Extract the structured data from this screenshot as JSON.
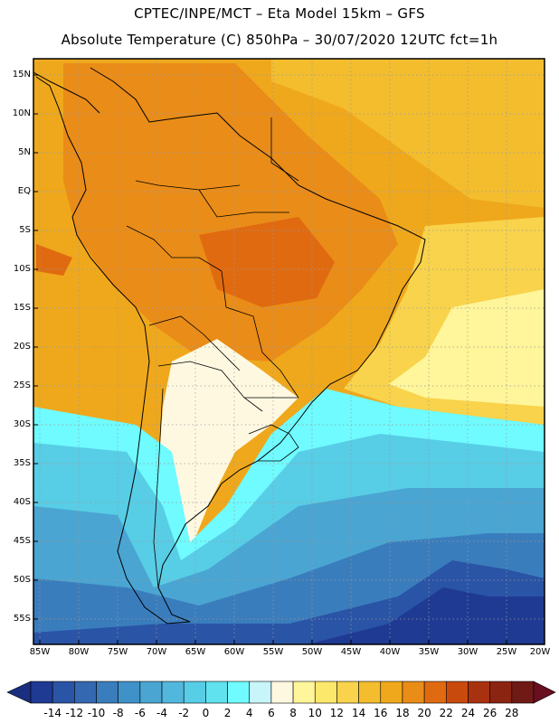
{
  "titles": {
    "line1": "CPTEC/INPE/MCT –  Eta Model 15km – GFS",
    "line2": "Absolute Temperature (C) 850hPa – 30/07/2020 12UTC fct=1h"
  },
  "axes": {
    "lat_labels": [
      "15N",
      "10N",
      "5N",
      "EQ",
      "5S",
      "10S",
      "15S",
      "20S",
      "25S",
      "30S",
      "35S",
      "40S",
      "45S",
      "50S",
      "55S"
    ],
    "lon_labels": [
      "85W",
      "80W",
      "75W",
      "70W",
      "65W",
      "60W",
      "55W",
      "50W",
      "45W",
      "40W",
      "35W",
      "30W",
      "25W",
      "20W"
    ]
  },
  "colorbar": {
    "labels": [
      "-14",
      "-12",
      "-10",
      "-8",
      "-6",
      "-4",
      "-2",
      "0",
      "2",
      "4",
      "6",
      "8",
      "10",
      "12",
      "14",
      "16",
      "18",
      "20",
      "22",
      "24",
      "26",
      "28"
    ],
    "colors": [
      "#1f3a93",
      "#2a54a6",
      "#3468b0",
      "#3a7dbd",
      "#3f92c8",
      "#4aa5d2",
      "#52b7dc",
      "#58cde6",
      "#61e2ef",
      "#6ffbff",
      "#c8f5fa",
      "#fff8e1",
      "#fff59a",
      "#fce86a",
      "#f8d34b",
      "#f3bd2e",
      "#efa81c",
      "#ea8c18",
      "#e06a10",
      "#c94a0d",
      "#a83210",
      "#8c2412",
      "#701a16"
    ],
    "low_color": "#1a2f80",
    "high_color": "#6a0f20"
  },
  "map_colors": {
    "ocean_equatorial": "#efa81c",
    "ocean_north": "#f3bd2e",
    "land_warm": "#ea8c18",
    "land_hot": "#e06a10",
    "subtropical": "#f8d34b",
    "mid_lat_light": "#fff59a",
    "cool": "#fff8e1",
    "cold_1": "#6ffbff",
    "cold_2": "#58cde6",
    "cold_3": "#4aa5d2",
    "cold_4": "#3a7dbd",
    "cold_5": "#2a54a6",
    "border": "#000000",
    "grid": "#9a9a9a"
  }
}
